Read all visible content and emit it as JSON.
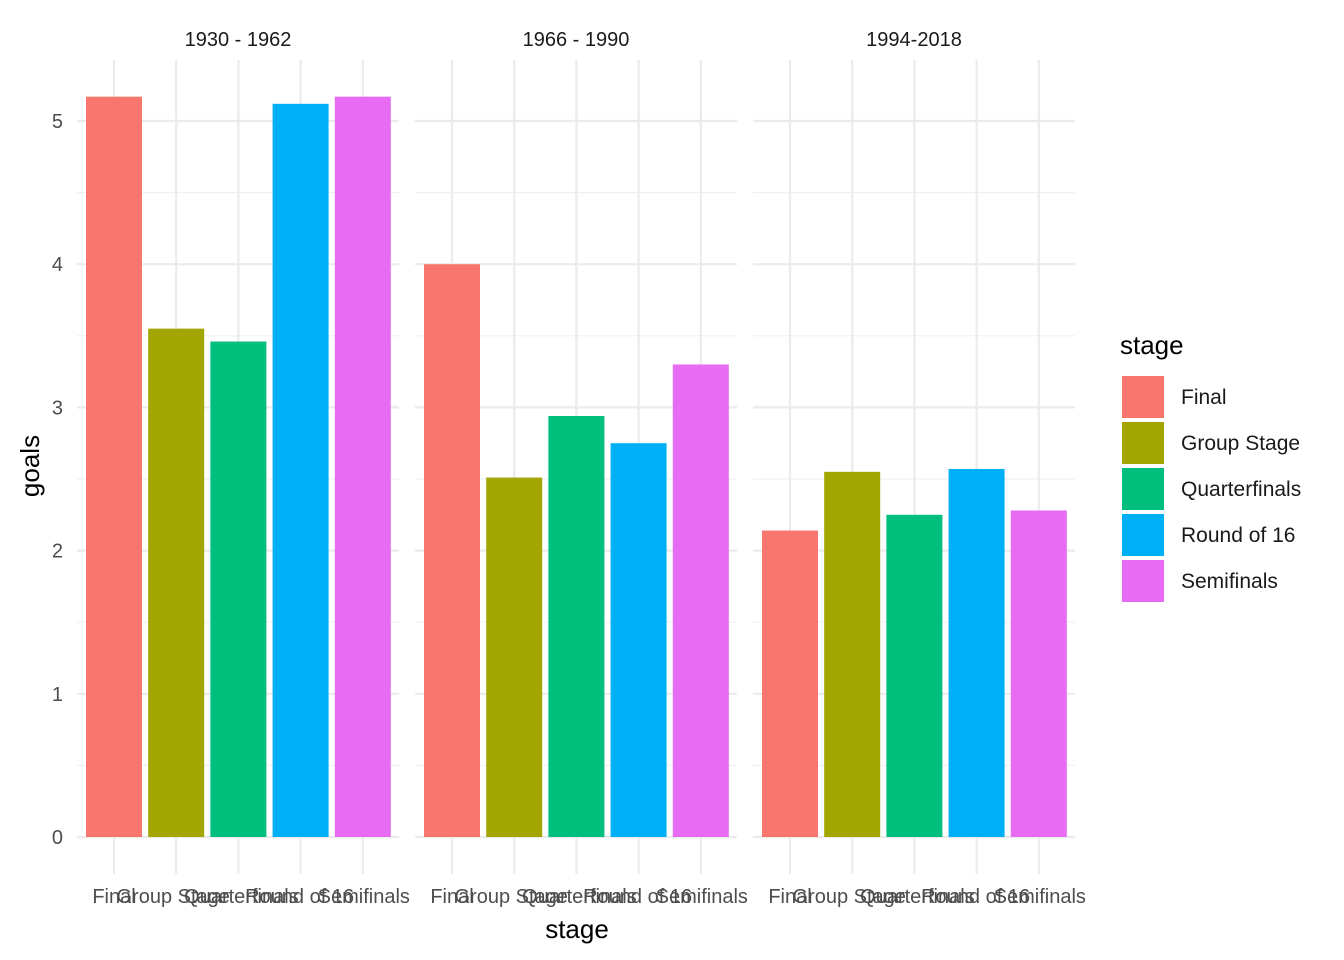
{
  "chart_data": {
    "type": "bar",
    "facets": [
      "1930 - 1962",
      "1966 - 1990",
      "1994-2018"
    ],
    "categories": [
      "Final",
      "Group Stage",
      "Quarterfinals",
      "Round of 16",
      "Semifinals"
    ],
    "values": [
      [
        5.17,
        3.55,
        3.46,
        5.12,
        5.17
      ],
      [
        4.0,
        2.51,
        2.94,
        2.75,
        3.3
      ],
      [
        2.14,
        2.55,
        2.25,
        2.57,
        2.28
      ]
    ],
    "xlabel": "stage",
    "ylabel": "goals",
    "ylim": [
      0,
      5.5
    ],
    "yticks": [
      0,
      1,
      2,
      3,
      4,
      5
    ],
    "grid": true,
    "legend": {
      "title": "stage",
      "position": "right",
      "entries": [
        "Final",
        "Group Stage",
        "Quarterfinals",
        "Round of 16",
        "Semifinals"
      ]
    },
    "colors": {
      "Final": "#F8766D",
      "Group Stage": "#A3A500",
      "Quarterfinals": "#00BF7D",
      "Round of 16": "#00B0F6",
      "Semifinals": "#E76BF3"
    }
  }
}
